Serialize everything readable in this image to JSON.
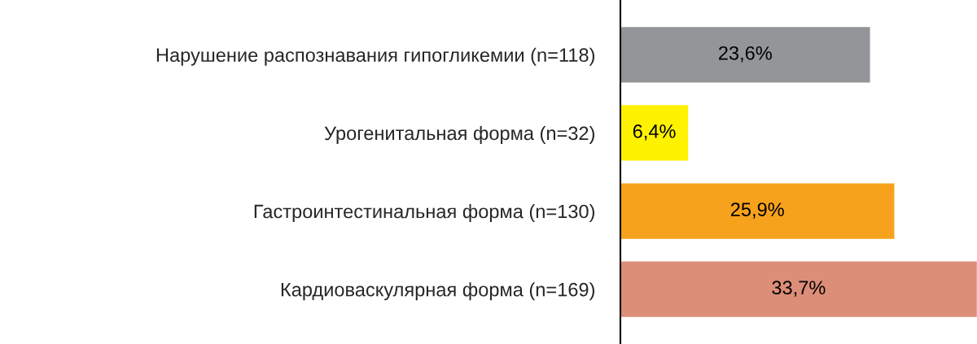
{
  "chart_data": {
    "type": "bar",
    "orientation": "horizontal",
    "categories": [
      "Нарушение распознавания гипогликемии (n=118)",
      "Урогенитальная форма (n=32)",
      "Гастроинтестинальная форма (n=130)",
      "Кардиоваскулярная форма (n=169)"
    ],
    "values": [
      23.6,
      6.4,
      25.9,
      33.7
    ],
    "colors": [
      "#939598",
      "#fff200",
      "#f7a21d",
      "#dd8e78"
    ],
    "value_labels": [
      "23,6%",
      "6,4%",
      "25,9%",
      "33,7%"
    ],
    "grid": false,
    "legend": false
  }
}
